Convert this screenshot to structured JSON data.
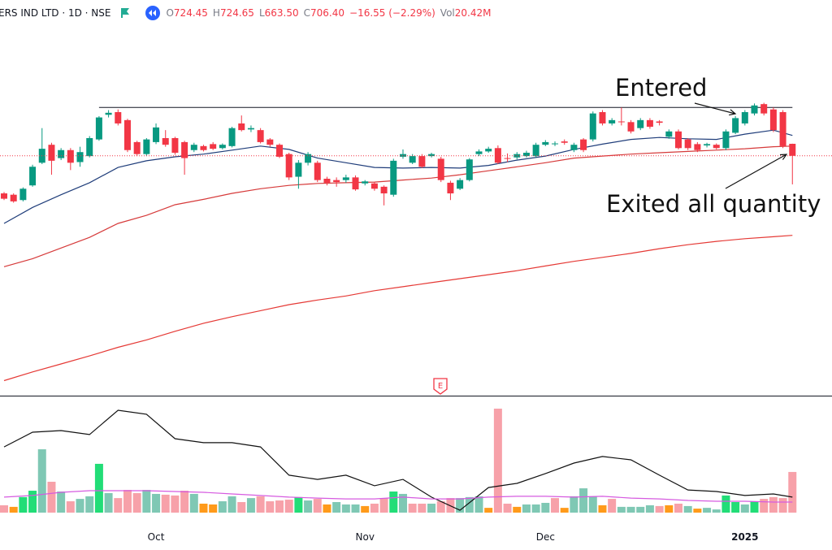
{
  "header": {
    "symbol": "ERS IND LTD · 1D · NSE",
    "ohlc": [
      {
        "key": "O",
        "value": "724.45"
      },
      {
        "key": "H",
        "value": "724.65"
      },
      {
        "key": "L",
        "value": "663.50"
      },
      {
        "key": "C",
        "value": "706.40"
      }
    ],
    "change": "−16.55 (−2.29%)",
    "volume": {
      "key": "Vol",
      "value": "20.42M"
    }
  },
  "chart_data": [
    {
      "type": "candlestick",
      "categories": [
        null,
        null,
        null,
        null,
        null,
        null,
        null,
        null,
        null,
        null,
        null,
        null,
        null,
        null,
        null,
        null,
        "Oct",
        null,
        null,
        null,
        null,
        null,
        null,
        null,
        null,
        null,
        null,
        null,
        null,
        null,
        null,
        null,
        null,
        null,
        null,
        null,
        null,
        null,
        "Nov",
        null,
        null,
        null,
        null,
        null,
        null,
        null,
        null,
        null,
        null,
        null,
        null,
        null,
        null,
        null,
        null,
        null,
        null,
        "Dec",
        null,
        null,
        null,
        null,
        null,
        null,
        null,
        null,
        null,
        null,
        null,
        null,
        null,
        null,
        null,
        null,
        null,
        null,
        null,
        null,
        "2025",
        null,
        null,
        null,
        null,
        null
      ],
      "open": [
        650,
        648,
        640,
        662,
        696,
        723,
        703,
        715,
        697,
        706,
        731,
        768,
        772,
        760,
        727,
        709,
        727,
        733,
        733,
        727,
        715,
        721,
        724,
        718,
        721,
        755,
        746,
        745,
        731,
        723,
        709,
        675,
        696,
        696,
        672,
        670,
        670,
        674,
        665,
        665,
        660,
        648,
        705,
        696,
        706,
        706,
        702,
        666,
        657,
        670,
        709,
        713,
        718,
        703,
        704,
        706,
        706,
        723,
        724,
        728,
        715,
        731,
        731,
        772,
        755,
        758,
        757,
        748,
        760,
        758,
        735,
        743,
        731,
        724,
        722,
        723,
        718,
        741,
        755,
        770,
        784,
        776,
        772,
        724.45
      ],
      "high": [
        652,
        650,
        659,
        693,
        748,
        726,
        718,
        718,
        720,
        736,
        766,
        775,
        776,
        762,
        729,
        733,
        755,
        745,
        735,
        729,
        726,
        723,
        727,
        725,
        750,
        767,
        752,
        748,
        733,
        725,
        711,
        700,
        712,
        699,
        675,
        674,
        678,
        677,
        670,
        667,
        662,
        702,
        716,
        709,
        709,
        711,
        705,
        669,
        673,
        703,
        716,
        720,
        722,
        710,
        712,
        714,
        726,
        730,
        728,
        731,
        726,
        733,
        773,
        775,
        763,
        779,
        760,
        763,
        763,
        760,
        746,
        746,
        733,
        727,
        726,
        725,
        746,
        766,
        775,
        785,
        786,
        779,
        775,
        724.65
      ],
      "low": [
        640,
        636,
        638,
        660,
        694,
        678,
        700,
        685,
        690,
        704,
        729,
        764,
        752,
        712,
        706,
        706,
        724,
        720,
        708,
        678,
        712,
        713,
        715,
        716,
        719,
        743,
        742,
        725,
        720,
        703,
        670,
        657,
        692,
        667,
        662,
        660,
        666,
        654,
        662,
        654,
        632,
        645,
        702,
        694,
        688,
        704,
        667,
        640,
        655,
        668,
        706,
        711,
        694,
        697,
        701,
        704,
        704,
        721,
        721,
        723,
        712,
        712,
        728,
        752,
        752,
        752,
        740,
        745,
        747,
        752,
        732,
        716,
        715,
        712,
        719,
        716,
        715,
        739,
        752,
        767,
        767,
        742,
        718,
        663.5
      ],
      "close": [
        642,
        638,
        657,
        690,
        717,
        699,
        715,
        696,
        712,
        733,
        764,
        771,
        755,
        715,
        709,
        731,
        749,
        723,
        711,
        703,
        723,
        715,
        717,
        723,
        748,
        745,
        748,
        727,
        723,
        705,
        674,
        696,
        709,
        670,
        666,
        667,
        674,
        656,
        668,
        657,
        650,
        699,
        709,
        706,
        690,
        709,
        670,
        650,
        670,
        701,
        713,
        717,
        696,
        702,
        709,
        711,
        723,
        727,
        725,
        726,
        723,
        715,
        770,
        755,
        760,
        757,
        743,
        760,
        750,
        756,
        743,
        718,
        718,
        715,
        724,
        718,
        743,
        763,
        772,
        782,
        770,
        745,
        721,
        706.4
      ],
      "up_color": "#089981",
      "down_color": "#f23645",
      "ylim": [
        350,
        930
      ],
      "series": [
        {
          "color": "#1f3d7a",
          "x": [
            0,
            3,
            6,
            9,
            12,
            15,
            18,
            21,
            24,
            27,
            30,
            33,
            36,
            39,
            42,
            45,
            48,
            51,
            54,
            57,
            60,
            63,
            66,
            69,
            72,
            75,
            78,
            81,
            83
          ],
          "values": [
            605,
            629,
            648,
            666,
            689,
            699,
            705,
            709,
            715,
            721,
            716,
            703,
            696,
            689,
            688,
            689,
            688,
            692,
            700,
            706,
            716,
            724,
            731,
            734,
            732,
            731,
            739,
            745,
            737
          ]
        },
        {
          "color": "#d63a3a",
          "x": [
            0,
            3,
            6,
            9,
            12,
            15,
            18,
            21,
            24,
            27,
            30,
            33,
            36,
            39,
            42,
            45,
            48,
            51,
            54,
            57,
            60,
            63,
            66,
            69,
            72,
            75,
            78,
            81,
            83
          ],
          "values": [
            540,
            552,
            568,
            584,
            605,
            617,
            633,
            641,
            650,
            657,
            662,
            665,
            666,
            667,
            670,
            673,
            678,
            684,
            690,
            696,
            703,
            706,
            709,
            711,
            713,
            715,
            717,
            720,
            721
          ]
        },
        {
          "color": "#e53935",
          "x": [
            0,
            3,
            6,
            9,
            12,
            15,
            18,
            21,
            24,
            27,
            30,
            33,
            36,
            39,
            42,
            45,
            48,
            51,
            54,
            57,
            60,
            63,
            66,
            69,
            72,
            75,
            78,
            81,
            83
          ],
          "values": [
            369,
            382,
            394,
            406,
            419,
            430,
            443,
            455,
            465,
            474,
            483,
            490,
            496,
            504,
            510,
            516,
            522,
            528,
            534,
            541,
            548,
            554,
            560,
            567,
            573,
            578,
            582,
            585,
            587
          ]
        }
      ],
      "resistance": 779,
      "marker": "E",
      "annotations": [
        {
          "text": "Entered"
        },
        {
          "text": "Exited all quantity"
        }
      ]
    },
    {
      "type": "bar",
      "values": [
        3.7,
        2.9,
        7.8,
        11.0,
        31.8,
        15.5,
        10.6,
        5.7,
        6.9,
        8.2,
        24.5,
        9.8,
        7.3,
        11.4,
        9.8,
        11.4,
        9.4,
        9.0,
        8.6,
        11.0,
        9.4,
        4.5,
        4.1,
        5.7,
        8.2,
        5.3,
        7.3,
        8.2,
        5.7,
        6.1,
        6.5,
        7.8,
        6.1,
        6.9,
        4.1,
        5.3,
        4.1,
        4.1,
        3.3,
        4.5,
        7.3,
        10.6,
        9.4,
        4.5,
        4.5,
        4.5,
        5.7,
        7.3,
        7.3,
        7.8,
        8.2,
        2.4,
        52.2,
        4.5,
        2.9,
        4.1,
        4.1,
        4.9,
        7.3,
        2.4,
        8.2,
        12.2,
        8.2,
        3.7,
        6.9,
        2.9,
        2.9,
        2.9,
        3.7,
        3.3,
        3.7,
        4.5,
        3.3,
        2.0,
        2.4,
        1.6,
        8.6,
        5.3,
        4.1,
        5.7,
        6.9,
        7.8,
        7.3,
        20.42
      ],
      "colors": [
        "#f7a1a9",
        "#ff9a1a",
        "#22dd77",
        "#22dd77",
        "#7fc8b4",
        "#f7a1a9",
        "#7fc8b4",
        "#f7a1a9",
        "#7fc8b4",
        "#7fc8b4",
        "#22dd77",
        "#7fc8b4",
        "#f7a1a9",
        "#f7a1a9",
        "#f7a1a9",
        "#7fc8b4",
        "#7fc8b4",
        "#f7a1a9",
        "#f7a1a9",
        "#f7a1a9",
        "#7fc8b4",
        "#ff9a1a",
        "#ff9a1a",
        "#7fc8b4",
        "#7fc8b4",
        "#f7a1a9",
        "#7fc8b4",
        "#f7a1a9",
        "#f7a1a9",
        "#f7a1a9",
        "#f7a1a9",
        "#22dd77",
        "#7fc8b4",
        "#f7a1a9",
        "#ff9a1a",
        "#7fc8b4",
        "#7fc8b4",
        "#7fc8b4",
        "#ff9a1a",
        "#f7a1a9",
        "#f7a1a9",
        "#22dd77",
        "#7fc8b4",
        "#f7a1a9",
        "#f7a1a9",
        "#7fc8b4",
        "#f7a1a9",
        "#f7a1a9",
        "#7fc8b4",
        "#7fc8b4",
        "#7fc8b4",
        "#ff9a1a",
        "#f7a1a9",
        "#f7a1a9",
        "#ff9a1a",
        "#7fc8b4",
        "#7fc8b4",
        "#7fc8b4",
        "#f7a1a9",
        "#ff9a1a",
        "#7fc8b4",
        "#7fc8b4",
        "#7fc8b4",
        "#ff9a1a",
        "#f7a1a9",
        "#7fc8b4",
        "#7fc8b4",
        "#7fc8b4",
        "#7fc8b4",
        "#f7a1a9",
        "#ff9a1a",
        "#f7a1a9",
        "#7fc8b4",
        "#ff9a1a",
        "#7fc8b4",
        "#7fc8b4",
        "#22dd77",
        "#22dd77",
        "#7fc8b4",
        "#22dd77",
        "#f7a1a9",
        "#f7a1a9",
        "#f7a1a9",
        "#f7a1a9"
      ],
      "ylim": [
        0,
        58
      ],
      "series": [
        {
          "color": "#111111",
          "x": [
            0,
            3,
            6,
            9,
            12,
            15,
            18,
            21,
            24,
            27,
            30,
            33,
            36,
            39,
            42,
            45,
            48,
            51,
            54,
            57,
            60,
            63,
            66,
            69,
            72,
            75,
            78,
            81,
            83
          ],
          "values": [
            33.0,
            40.4,
            41.2,
            39.2,
            51.4,
            49.4,
            37.1,
            35.1,
            35.1,
            33.0,
            18.8,
            16.7,
            18.8,
            13.5,
            16.7,
            7.8,
            1.2,
            12.6,
            14.7,
            19.6,
            24.9,
            28.2,
            26.5,
            18.8,
            11.4,
            10.6,
            8.6,
            9.4,
            7.8
          ]
        },
        {
          "color": "#d65be0",
          "x": [
            0,
            3,
            6,
            9,
            12,
            15,
            18,
            21,
            24,
            27,
            30,
            33,
            36,
            39,
            42,
            45,
            48,
            51,
            54,
            57,
            60,
            63,
            66,
            69,
            72,
            75,
            78,
            81,
            83
          ],
          "values": [
            7.8,
            8.6,
            10.2,
            11.0,
            11.0,
            11.0,
            10.6,
            10.2,
            9.4,
            8.6,
            7.8,
            7.3,
            6.9,
            6.9,
            7.8,
            6.9,
            6.9,
            7.8,
            8.2,
            8.2,
            7.8,
            8.2,
            7.3,
            6.9,
            6.1,
            5.7,
            5.7,
            5.3,
            5.3
          ]
        }
      ]
    }
  ]
}
